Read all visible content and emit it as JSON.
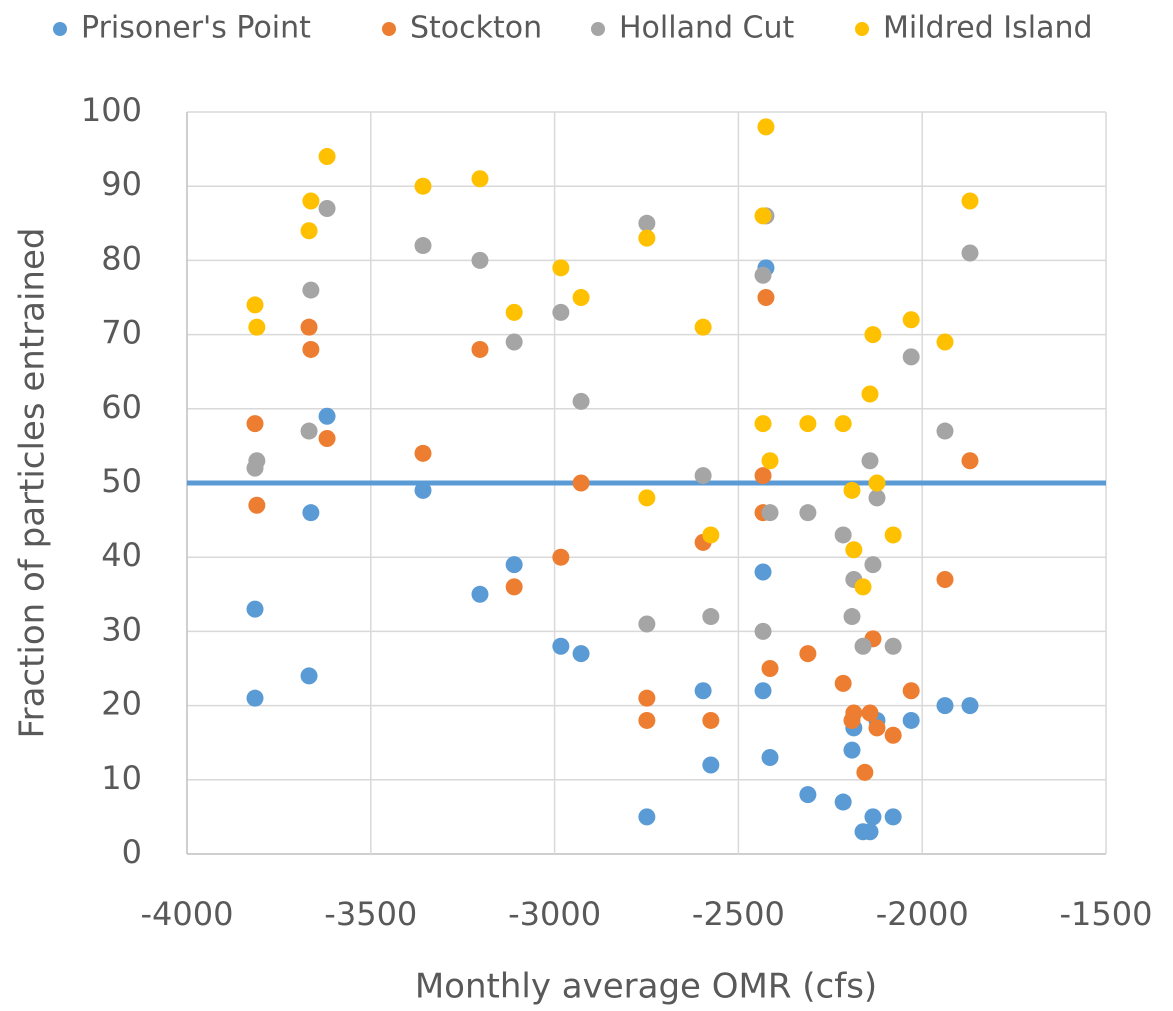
{
  "chart_data": {
    "type": "scatter",
    "x_label": "Monthly average OMR (cfs)",
    "y_label": "Fraction of particles entrained",
    "xlim": [
      -4000,
      -1500
    ],
    "xticks": [
      -4000,
      -3500,
      -3000,
      -2500,
      -2000,
      -1500
    ],
    "ylim": [
      0,
      100
    ],
    "yticks": [
      0,
      10,
      20,
      30,
      40,
      50,
      60,
      70,
      80,
      90,
      100
    ],
    "grid": true,
    "legend": "top",
    "hline": {
      "value": 50,
      "color": "#5b9bd5"
    },
    "series": [
      {
        "name": "Prisoner's Point",
        "color": "#5b9bd5",
        "x": [
          -3815,
          -3815,
          -3668,
          -3663,
          -3619,
          -3358,
          -3203,
          -3110,
          -2983,
          -2928,
          -2749,
          -2596,
          -2575,
          -2433,
          -2433,
          -2425,
          -2414,
          -2311,
          -2215,
          -2191,
          -2186,
          -2161,
          -2142,
          -2134,
          -2123,
          -2079,
          -2030,
          -1938,
          -1870
        ],
        "values": [
          33,
          21,
          24,
          46,
          59,
          49,
          35,
          39,
          28,
          27,
          5,
          22,
          12,
          38,
          22,
          79,
          13,
          8,
          7,
          14,
          17,
          3,
          3,
          5,
          18,
          5,
          18,
          20,
          20
        ]
      },
      {
        "name": "Stockton",
        "color": "#ed7d31",
        "x": [
          -3815,
          -3810,
          -3668,
          -3663,
          -3619,
          -3358,
          -3203,
          -3110,
          -2983,
          -2928,
          -2749,
          -2749,
          -2596,
          -2575,
          -2433,
          -2433,
          -2425,
          -2414,
          -2311,
          -2215,
          -2191,
          -2186,
          -2156,
          -2142,
          -2134,
          -2123,
          -2079,
          -2030,
          -1938,
          -1870
        ],
        "values": [
          58,
          47,
          71,
          68,
          56,
          54,
          68,
          36,
          40,
          50,
          21,
          18,
          42,
          18,
          51,
          46,
          75,
          25,
          27,
          23,
          18,
          19,
          11,
          19,
          29,
          17,
          16,
          22,
          37,
          53
        ]
      },
      {
        "name": "Holland Cut",
        "color": "#a5a5a5",
        "x": [
          -3815,
          -3810,
          -3663,
          -3668,
          -3619,
          -3358,
          -3203,
          -3110,
          -2983,
          -2928,
          -2749,
          -2749,
          -2596,
          -2575,
          -2433,
          -2425,
          -2433,
          -2414,
          -2311,
          -2215,
          -2191,
          -2186,
          -2161,
          -2142,
          -2134,
          -2123,
          -2079,
          -2030,
          -1938,
          -1870
        ],
        "values": [
          52,
          53,
          76,
          57,
          87,
          82,
          80,
          69,
          73,
          61,
          85,
          31,
          51,
          32,
          78,
          86,
          30,
          46,
          46,
          43,
          32,
          37,
          28,
          53,
          39,
          48,
          28,
          67,
          57,
          81
        ]
      },
      {
        "name": "Mildred Island",
        "color": "#ffc000",
        "x": [
          -3815,
          -3810,
          -3668,
          -3663,
          -3619,
          -3358,
          -3203,
          -3110,
          -2983,
          -2928,
          -2749,
          -2749,
          -2596,
          -2575,
          -2433,
          -2425,
          -2433,
          -2414,
          -2311,
          -2215,
          -2191,
          -2186,
          -2161,
          -2142,
          -2134,
          -2123,
          -2079,
          -2030,
          -1938,
          -1870
        ],
        "values": [
          74,
          71,
          84,
          88,
          94,
          90,
          91,
          73,
          79,
          75,
          83,
          48,
          71,
          43,
          86,
          98,
          58,
          53,
          58,
          58,
          49,
          41,
          36,
          62,
          70,
          50,
          43,
          72,
          69,
          88
        ]
      }
    ]
  }
}
